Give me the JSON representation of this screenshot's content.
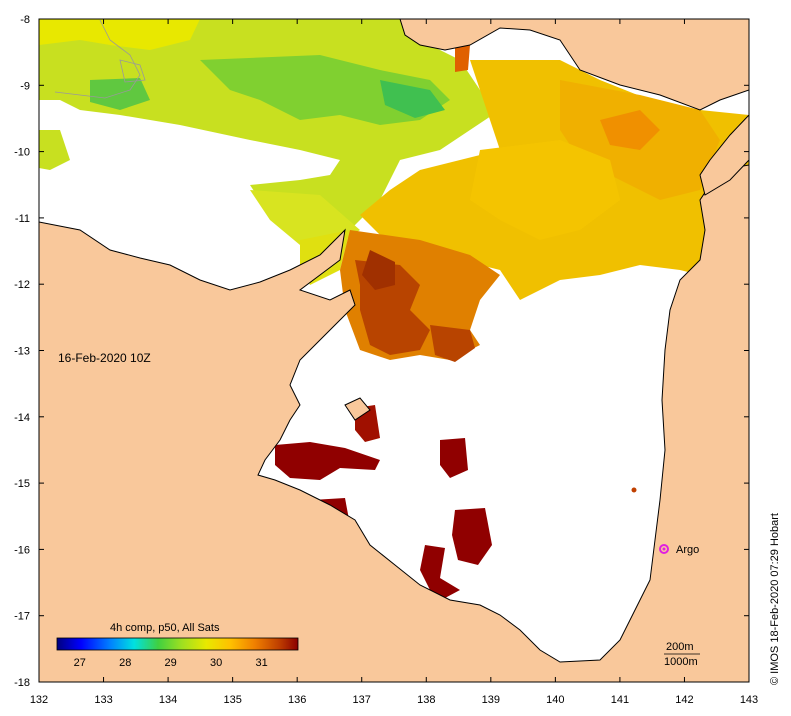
{
  "map": {
    "lon_ticks": [
      "132",
      "133",
      "134",
      "135",
      "136",
      "137",
      "138",
      "139",
      "140",
      "141",
      "142",
      "143"
    ],
    "lat_ticks": [
      "-8",
      "-9",
      "-10",
      "-11",
      "-12",
      "-13",
      "-14",
      "-15",
      "-16",
      "-17",
      "-18"
    ],
    "lon_range": [
      132,
      143
    ],
    "lat_range": [
      -18,
      -8
    ],
    "timestamp": "16-Feb-2020 10Z",
    "argo_label": "Argo",
    "argo_position": {
      "lon": 141.7,
      "lat": -16.0
    },
    "credit": "© IMOS 18-Feb-2020 07:29 Hobart",
    "contour_labels": [
      "200m",
      "1000m"
    ],
    "colors": {
      "land": "#f9c89b",
      "no_data": "#ffffff",
      "argo": "#e020e0"
    }
  },
  "colorbar": {
    "title": "4h comp, p50, All Sats",
    "tick_labels": [
      "27",
      "28",
      "29",
      "30",
      "31"
    ],
    "range": [
      26.5,
      31.8
    ],
    "gradient": [
      "#00007f",
      "#0000ff",
      "#0080ff",
      "#00e0e0",
      "#40d040",
      "#a0e020",
      "#e8e800",
      "#ffc000",
      "#f08000",
      "#c04000",
      "#8b0000"
    ]
  }
}
